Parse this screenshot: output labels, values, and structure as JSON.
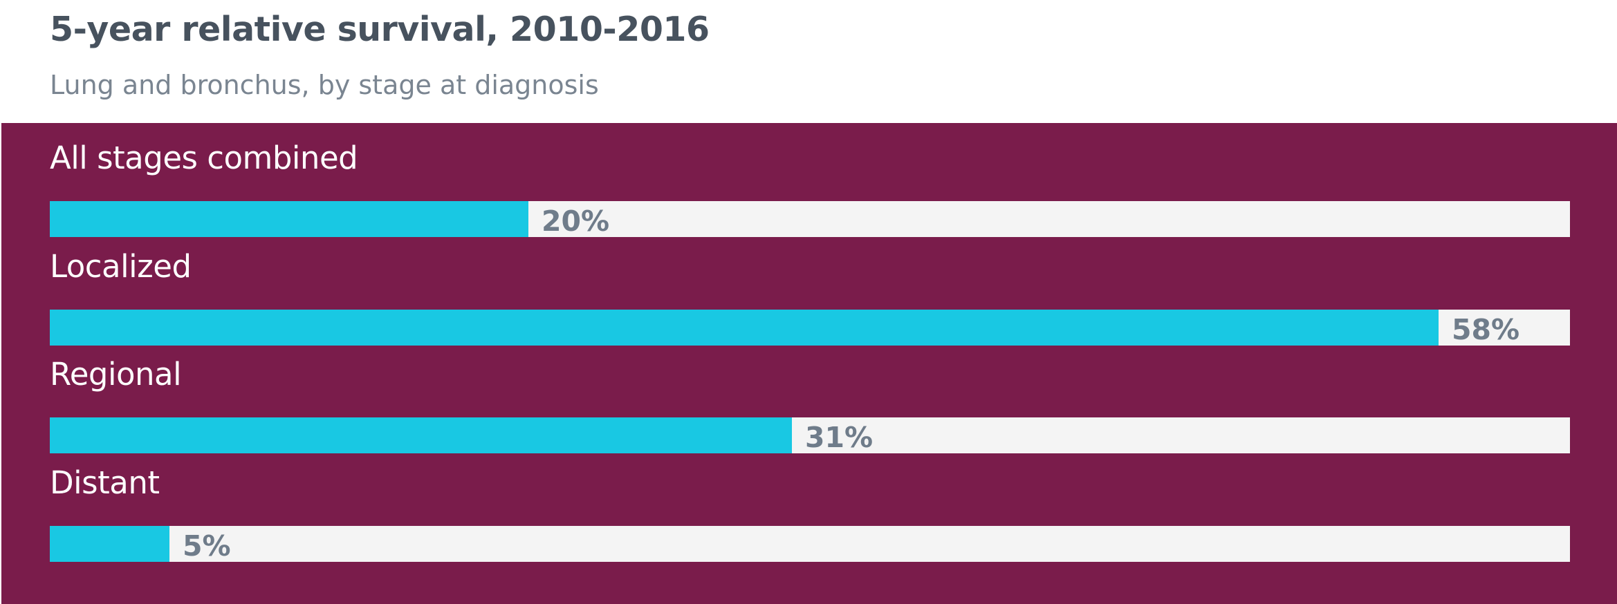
{
  "title": "5-year relative survival, 2010-2016",
  "subtitle": "Lung and bronchus, by stage at diagnosis",
  "colors": {
    "title": "#47525e",
    "subtitle": "#7a8591",
    "panel_background": "#7a1c4b",
    "bar_fill": "#19c8e3",
    "track": "#f4f4f4",
    "value_label": "#6f7c8a"
  },
  "chart_data": {
    "type": "bar",
    "orientation": "horizontal",
    "title": "5-year relative survival, 2010-2016",
    "subtitle": "Lung and bronchus, by stage at diagnosis",
    "categories": [
      "All stages combined",
      "Localized",
      "Regional",
      "Distant"
    ],
    "values": [
      20,
      58,
      31,
      5
    ],
    "value_labels": [
      "20%",
      "58%",
      "31%",
      "5%"
    ],
    "unit": "%",
    "xlim": [
      0,
      63.5
    ],
    "grid": false,
    "legend": "none"
  }
}
